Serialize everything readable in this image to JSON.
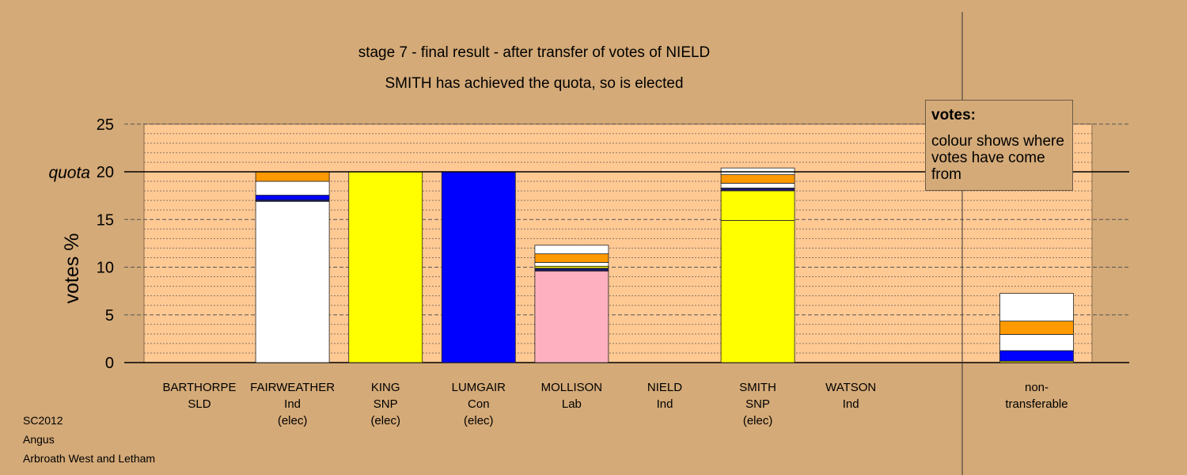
{
  "chart_data": {
    "type": "bar",
    "title": "stage 7 - final result - after transfer of votes of NIELD",
    "subtitle": "SMITH has achieved the quota, so is elected",
    "ylabel": "votes %",
    "ylim": [
      0,
      25
    ],
    "yticks": [
      "0",
      "5",
      "10",
      "15",
      "20",
      "25"
    ],
    "quota_label": "quota",
    "quota_value": 20,
    "grid": true,
    "legend_position": "top-right",
    "colors": {
      "SNP": "#ffff00",
      "Con": "#0000ff",
      "Lab": "#ffb0c0",
      "Ind": "#ffffff",
      "SLD": "#ff9900",
      "dark": "#1a1a66"
    },
    "categories": [
      {
        "name": "BARTHORPE",
        "party": "SLD",
        "status": "",
        "segments": []
      },
      {
        "name": "FAIRWEATHER",
        "party": "Ind",
        "status": "(elec)",
        "segments": [
          {
            "from": "Ind",
            "value": 16.9,
            "color": "#ffffff"
          },
          {
            "from": "dark",
            "value": 0.15,
            "color": "#1a1a66"
          },
          {
            "from": "Con",
            "value": 0.5,
            "color": "#0000ff"
          },
          {
            "from": "Ind",
            "value": 1.45,
            "color": "#ffffff"
          },
          {
            "from": "SLD",
            "value": 1.0,
            "color": "#ff9900"
          }
        ]
      },
      {
        "name": "KING",
        "party": "SNP",
        "status": "(elec)",
        "segments": [
          {
            "from": "SNP",
            "value": 20.0,
            "color": "#ffff00"
          }
        ]
      },
      {
        "name": "LUMGAIR",
        "party": "Con",
        "status": "(elec)",
        "segments": [
          {
            "from": "Con",
            "value": 20.0,
            "color": "#0000ff"
          }
        ]
      },
      {
        "name": "MOLLISON",
        "party": "Lab",
        "status": "",
        "segments": [
          {
            "from": "Lab",
            "value": 9.6,
            "color": "#ffb0c0"
          },
          {
            "from": "dark",
            "value": 0.3,
            "color": "#1a1a66"
          },
          {
            "from": "SNP",
            "value": 0.2,
            "color": "#ffff00"
          },
          {
            "from": "Ind",
            "value": 0.4,
            "color": "#ffffff"
          },
          {
            "from": "SLD",
            "value": 0.9,
            "color": "#ff9900"
          },
          {
            "from": "Ind",
            "value": 0.9,
            "color": "#ffffff"
          }
        ]
      },
      {
        "name": "NIELD",
        "party": "Ind",
        "status": "",
        "segments": []
      },
      {
        "name": "SMITH",
        "party": "SNP",
        "status": "(elec)",
        "segments": [
          {
            "from": "SNP",
            "value": 14.9,
            "color": "#ffff00"
          },
          {
            "from": "SNP",
            "value": 3.1,
            "color": "#ffff00"
          },
          {
            "from": "dark",
            "value": 0.3,
            "color": "#1a1a66"
          },
          {
            "from": "Ind",
            "value": 0.5,
            "color": "#ffffff"
          },
          {
            "from": "SLD",
            "value": 0.9,
            "color": "#ff9900"
          },
          {
            "from": "Ind",
            "value": 0.7,
            "color": "#ffffff"
          }
        ]
      },
      {
        "name": "WATSON",
        "party": "Ind",
        "status": "",
        "segments": []
      }
    ],
    "nontransferable": {
      "line1": "non-",
      "line2": "transferable",
      "segments": [
        {
          "from": "SNP",
          "value": 0.15,
          "color": "#ffff00"
        },
        {
          "from": "Con",
          "value": 1.1,
          "color": "#0000ff"
        },
        {
          "from": "Ind",
          "value": 1.7,
          "color": "#ffffff"
        },
        {
          "from": "SLD",
          "value": 1.4,
          "color": "#ff9900"
        },
        {
          "from": "Ind",
          "value": 2.9,
          "color": "#ffffff"
        }
      ]
    }
  },
  "legend": {
    "title": "votes:",
    "text": "colour shows where votes have come from"
  },
  "footer": {
    "line1": "SC2012",
    "line2": "Angus",
    "line3": "Arbroath West and Letham"
  }
}
